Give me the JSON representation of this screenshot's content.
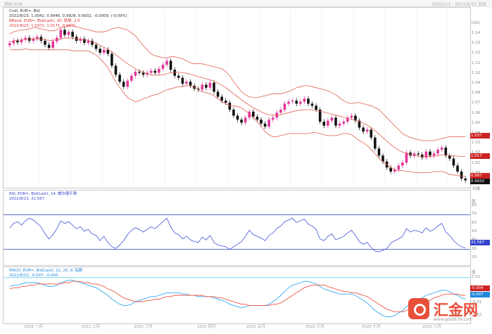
{
  "header": {
    "left": "指标 EUR",
    "right": "2022/1/3 - 2022/8/23 日线"
  },
  "price_panel": {
    "legend": [
      {
        "text": "Cndl, EUR=, Bid",
        "color": "#333333"
      },
      {
        "text": "2022/8/23, 1.0042, 0.9946, 0.9928, 0.9932, -0.0009, (-0.09%)",
        "color": "#333333"
      },
      {
        "text": "BBand, EUR=, Bid(Last), 20, 简单, 2.0",
        "color": "#e03030"
      },
      {
        "text": "2022/8/23, 1.0371, 1.0171, 0.9971",
        "color": "#e03030"
      }
    ],
    "unit": "USD",
    "ticks": [
      "1.14",
      "1.13",
      "1.12",
      "1.11",
      "1.10",
      "1.09",
      "1.08",
      "1.07",
      "1.06",
      "1.05",
      "1.04",
      "1.03",
      "1.02",
      "1.01",
      "1.00"
    ],
    "value_labels": [
      {
        "text": "1.037",
        "color": "#cc2222"
      },
      {
        "text": "1.017",
        "color": "#cc2222"
      },
      {
        "text": "0.997",
        "color": "#cc2222"
      },
      {
        "text": "0.9932",
        "color": "#111111"
      }
    ],
    "bottom_label": "价格"
  },
  "rsi_panel": {
    "legend": [
      {
        "text": "RSI, EUR=, Bid(Last), 14, 威尔德平滑",
        "color": "#3344cc"
      },
      {
        "text": "2022/8/23, 31.567",
        "color": "#3344cc"
      }
    ],
    "unit": "值",
    "ticks": [
      "80",
      "70",
      "60",
      "50",
      "40",
      "30",
      "20"
    ],
    "value_label": {
      "text": "31.567",
      "color": "#3344cc"
    }
  },
  "macd_panel": {
    "legend": [
      {
        "text": "MACD, EUR=, Bid(Last), 12, 26, 9, 指数",
        "color": "#2288dd"
      },
      {
        "text": "2022/8/23, -0.007, -0.004",
        "color": "#2288dd"
      }
    ],
    "unit": "值",
    "ticks": [
      "0.01",
      "0",
      "-0.01",
      "-0.02"
    ],
    "value_labels": [
      {
        "text": "-0.004",
        "color": "#cc2222"
      },
      {
        "text": "-0.007",
        "color": "#2288dd"
      }
    ]
  },
  "x_axis": {
    "labels": [
      "2022 一月",
      "2022 二月",
      "2022 三月",
      "2022 四月",
      "2022 五月",
      "2022 六月",
      "2022 七月",
      "2022 八月"
    ]
  },
  "watermark": {
    "name": "汇金网",
    "url": "www.gold678.com"
  },
  "chart_data": [
    {
      "type": "candlestick",
      "title": "Cndl, EUR=, Bid",
      "ylim": [
        0.99,
        1.145
      ],
      "ylabel": "USD",
      "colors": {
        "up": "#e0359a",
        "down": "#111111",
        "band": "#e06050"
      },
      "close": [
        1.1305,
        1.133,
        1.1315,
        1.134,
        1.136,
        1.133,
        1.135,
        1.137,
        1.133,
        1.129,
        1.126,
        1.1325,
        1.136,
        1.144,
        1.139,
        1.142,
        1.137,
        1.133,
        1.135,
        1.131,
        1.133,
        1.129,
        1.125,
        1.121,
        1.124,
        1.12,
        1.108,
        1.099,
        1.092,
        1.087,
        1.093,
        1.098,
        1.102,
        1.101,
        1.099,
        1.101,
        1.103,
        1.101,
        1.105,
        1.109,
        1.113,
        1.104,
        1.098,
        1.096,
        1.09,
        1.092,
        1.088,
        1.085,
        1.084,
        1.089,
        1.086,
        1.091,
        1.082,
        1.077,
        1.073,
        1.071,
        1.064,
        1.058,
        1.054,
        1.051,
        1.056,
        1.062,
        1.057,
        1.054,
        1.05,
        1.047,
        1.054,
        1.056,
        1.061,
        1.064,
        1.07,
        1.072,
        1.073,
        1.07,
        1.072,
        1.075,
        1.07,
        1.068,
        1.064,
        1.052,
        1.048,
        1.053,
        1.056,
        1.048,
        1.05,
        1.052,
        1.056,
        1.058,
        1.053,
        1.046,
        1.042,
        1.044,
        1.036,
        1.025,
        1.018,
        1.012,
        1.006,
        1.002,
        1.004,
        1.008,
        1.011,
        1.021,
        1.018,
        1.02,
        1.019,
        1.016,
        1.022,
        1.018,
        1.02,
        1.024,
        1.026,
        1.018,
        1.015,
        1.008,
        1.002,
        0.995,
        0.9932
      ],
      "bband_upper": [
        1.14,
        1.142,
        1.143,
        1.144,
        1.144,
        1.145,
        1.146,
        1.146,
        1.145,
        1.144,
        1.143,
        1.143,
        1.144,
        1.146,
        1.147,
        1.148,
        1.148,
        1.147,
        1.146,
        1.145,
        1.144,
        1.143,
        1.142,
        1.142,
        1.142,
        1.143,
        1.145,
        1.146,
        1.146,
        1.145,
        1.144,
        1.141,
        1.138,
        1.133,
        1.128,
        1.124,
        1.12,
        1.118,
        1.117,
        1.116,
        1.116,
        1.117,
        1.117,
        1.116,
        1.115,
        1.113,
        1.111,
        1.11,
        1.11,
        1.11,
        1.109,
        1.108,
        1.107,
        1.106,
        1.105,
        1.102,
        1.098,
        1.092,
        1.087,
        1.082,
        1.079,
        1.077,
        1.076,
        1.076,
        1.077,
        1.078,
        1.079,
        1.08,
        1.08,
        1.08,
        1.081,
        1.082,
        1.084,
        1.086,
        1.087,
        1.088,
        1.088,
        1.087,
        1.086,
        1.085,
        1.084,
        1.083,
        1.081,
        1.079,
        1.076,
        1.073,
        1.071,
        1.07,
        1.071,
        1.071,
        1.07,
        1.069,
        1.068,
        1.066,
        1.064,
        1.06,
        1.056,
        1.052,
        1.048,
        1.044,
        1.04,
        1.038,
        1.036,
        1.035,
        1.034,
        1.033,
        1.033,
        1.033,
        1.033,
        1.034,
        1.035,
        1.036,
        1.037,
        1.037,
        1.037,
        1.037,
        1.0371
      ],
      "bband_middle": [
        1.132,
        1.133,
        1.1335,
        1.134,
        1.1345,
        1.1345,
        1.135,
        1.135,
        1.1345,
        1.134,
        1.1335,
        1.1335,
        1.134,
        1.135,
        1.1355,
        1.136,
        1.1355,
        1.135,
        1.1345,
        1.134,
        1.1335,
        1.132,
        1.1305,
        1.1285,
        1.1265,
        1.1245,
        1.122,
        1.119,
        1.116,
        1.113,
        1.11,
        1.1075,
        1.105,
        1.103,
        1.1015,
        1.1,
        1.099,
        1.0985,
        1.0985,
        1.099,
        1.1,
        1.101,
        1.1015,
        1.1015,
        1.101,
        1.1005,
        1.0995,
        1.0985,
        1.097,
        1.096,
        1.095,
        1.094,
        1.0925,
        1.0905,
        1.0885,
        1.086,
        1.083,
        1.08,
        1.077,
        1.074,
        1.071,
        1.0685,
        1.066,
        1.064,
        1.062,
        1.06,
        1.059,
        1.0585,
        1.0585,
        1.059,
        1.06,
        1.061,
        1.062,
        1.063,
        1.0635,
        1.064,
        1.064,
        1.064,
        1.0635,
        1.0625,
        1.0615,
        1.0605,
        1.0595,
        1.0585,
        1.0575,
        1.0565,
        1.0555,
        1.0545,
        1.0535,
        1.052,
        1.0505,
        1.0485,
        1.046,
        1.043,
        1.0395,
        1.036,
        1.0325,
        1.029,
        1.026,
        1.0235,
        1.0215,
        1.02,
        1.019,
        1.018,
        1.0175,
        1.017,
        1.017,
        1.017,
        1.0175,
        1.018,
        1.0185,
        1.0185,
        1.018,
        1.0178,
        1.0175,
        1.0172,
        1.0171
      ],
      "bband_lower": [
        1.124,
        1.124,
        1.124,
        1.124,
        1.125,
        1.124,
        1.124,
        1.124,
        1.124,
        1.124,
        1.124,
        1.124,
        1.124,
        1.124,
        1.124,
        1.124,
        1.123,
        1.123,
        1.123,
        1.123,
        1.123,
        1.121,
        1.119,
        1.115,
        1.111,
        1.106,
        1.099,
        1.092,
        1.086,
        1.081,
        1.076,
        1.074,
        1.072,
        1.073,
        1.075,
        1.076,
        1.078,
        1.079,
        1.08,
        1.082,
        1.084,
        1.085,
        1.086,
        1.087,
        1.087,
        1.088,
        1.088,
        1.087,
        1.084,
        1.082,
        1.081,
        1.08,
        1.078,
        1.075,
        1.072,
        1.07,
        1.068,
        1.068,
        1.067,
        1.066,
        1.063,
        1.06,
        1.056,
        1.052,
        1.047,
        1.042,
        1.039,
        1.037,
        1.037,
        1.038,
        1.039,
        1.04,
        1.04,
        1.04,
        1.04,
        1.04,
        1.04,
        1.041,
        1.041,
        1.04,
        1.039,
        1.038,
        1.038,
        1.038,
        1.039,
        1.04,
        1.04,
        1.039,
        1.036,
        1.033,
        1.031,
        1.028,
        1.024,
        1.02,
        1.015,
        1.012,
        1.009,
        1.006,
        1.004,
        1.003,
        1.003,
        1.002,
        1.002,
        1.001,
        1.001,
        1.001,
        1.001,
        1.001,
        1.002,
        1.002,
        1.002,
        1.001,
        0.999,
        0.9986,
        0.998,
        0.9975,
        0.9971
      ]
    },
    {
      "type": "line",
      "title": "RSI, EUR=, Bid(Last), 14, 威尔德平滑",
      "ylim": [
        15,
        85
      ],
      "reference_lines": [
        70,
        30
      ],
      "series": [
        {
          "name": "RSI",
          "color": "#5566dd",
          "values": [
            55,
            60,
            62,
            58,
            63,
            66,
            64,
            60,
            56,
            48,
            42,
            47,
            54,
            63,
            60,
            62,
            58,
            54,
            56,
            51,
            53,
            48,
            46,
            40,
            45,
            38,
            33,
            31,
            35,
            40,
            47,
            52,
            55,
            53,
            50,
            53,
            56,
            54,
            58,
            62,
            66,
            56,
            49,
            47,
            42,
            45,
            41,
            39,
            38,
            44,
            41,
            46,
            38,
            35,
            34,
            33,
            30,
            33,
            36,
            39,
            45,
            52,
            47,
            45,
            43,
            40,
            46,
            49,
            54,
            57,
            62,
            64,
            66,
            61,
            63,
            65,
            59,
            57,
            53,
            42,
            40,
            45,
            48,
            41,
            43,
            45,
            49,
            52,
            46,
            39,
            36,
            38,
            32,
            28,
            27,
            29,
            31,
            37,
            40,
            42,
            45,
            54,
            50,
            52,
            51,
            49,
            55,
            51,
            53,
            57,
            60,
            50,
            46,
            40,
            36,
            33,
            31.567
          ]
        }
      ]
    },
    {
      "type": "line",
      "title": "MACD, EUR=, Bid(Last), 12, 26, 9, 指数",
      "ylim": [
        -0.024,
        0.016
      ],
      "series": [
        {
          "name": "MACD",
          "color": "#33aaee",
          "values": [
            0.003,
            0.004,
            0.004,
            0.005,
            0.006,
            0.006,
            0.006,
            0.006,
            0.005,
            0.004,
            0.003,
            0.003,
            0.004,
            0.006,
            0.007,
            0.008,
            0.008,
            0.007,
            0.006,
            0.005,
            0.004,
            0.003,
            0.002,
            0.0,
            -0.002,
            -0.004,
            -0.007,
            -0.009,
            -0.011,
            -0.012,
            -0.012,
            -0.011,
            -0.009,
            -0.008,
            -0.007,
            -0.006,
            -0.005,
            -0.005,
            -0.004,
            -0.003,
            -0.002,
            -0.002,
            -0.002,
            -0.002,
            -0.003,
            -0.003,
            -0.004,
            -0.004,
            -0.005,
            -0.005,
            -0.005,
            -0.005,
            -0.006,
            -0.007,
            -0.008,
            -0.009,
            -0.011,
            -0.012,
            -0.013,
            -0.014,
            -0.013,
            -0.012,
            -0.012,
            -0.012,
            -0.012,
            -0.012,
            -0.011,
            -0.009,
            -0.007,
            -0.004,
            -0.001,
            0.002,
            0.004,
            0.005,
            0.006,
            0.007,
            0.007,
            0.006,
            0.005,
            0.003,
            0.001,
            0.0,
            -0.001,
            -0.002,
            -0.003,
            -0.003,
            -0.003,
            -0.003,
            -0.004,
            -0.006,
            -0.008,
            -0.01,
            -0.013,
            -0.016,
            -0.018,
            -0.02,
            -0.021,
            -0.021,
            -0.02,
            -0.018,
            -0.016,
            -0.013,
            -0.011,
            -0.009,
            -0.007,
            -0.006,
            -0.004,
            -0.003,
            -0.002,
            -0.001,
            0.0,
            0.0,
            -0.001,
            -0.003,
            -0.004,
            -0.006,
            -0.007
          ]
        },
        {
          "name": "Signal",
          "color": "#ee5544",
          "values": [
            0.001,
            0.002,
            0.002,
            0.003,
            0.003,
            0.004,
            0.004,
            0.005,
            0.005,
            0.005,
            0.005,
            0.005,
            0.005,
            0.005,
            0.006,
            0.006,
            0.007,
            0.007,
            0.007,
            0.006,
            0.006,
            0.005,
            0.005,
            0.004,
            0.003,
            0.001,
            0.0,
            -0.002,
            -0.004,
            -0.006,
            -0.007,
            -0.008,
            -0.009,
            -0.009,
            -0.009,
            -0.008,
            -0.008,
            -0.007,
            -0.007,
            -0.006,
            -0.005,
            -0.005,
            -0.004,
            -0.004,
            -0.004,
            -0.004,
            -0.004,
            -0.004,
            -0.004,
            -0.004,
            -0.005,
            -0.005,
            -0.005,
            -0.006,
            -0.006,
            -0.007,
            -0.008,
            -0.009,
            -0.01,
            -0.011,
            -0.011,
            -0.012,
            -0.012,
            -0.012,
            -0.012,
            -0.012,
            -0.012,
            -0.011,
            -0.011,
            -0.01,
            -0.008,
            -0.006,
            -0.004,
            -0.002,
            0.0,
            0.002,
            0.003,
            0.004,
            0.004,
            0.004,
            0.004,
            0.003,
            0.002,
            0.001,
            0.0,
            -0.001,
            -0.001,
            -0.002,
            -0.002,
            -0.003,
            -0.004,
            -0.005,
            -0.007,
            -0.009,
            -0.011,
            -0.013,
            -0.015,
            -0.016,
            -0.017,
            -0.017,
            -0.017,
            -0.016,
            -0.015,
            -0.014,
            -0.012,
            -0.011,
            -0.009,
            -0.008,
            -0.006,
            -0.005,
            -0.004,
            -0.003,
            -0.003,
            -0.003,
            -0.003,
            -0.004,
            -0.004
          ]
        }
      ]
    }
  ]
}
